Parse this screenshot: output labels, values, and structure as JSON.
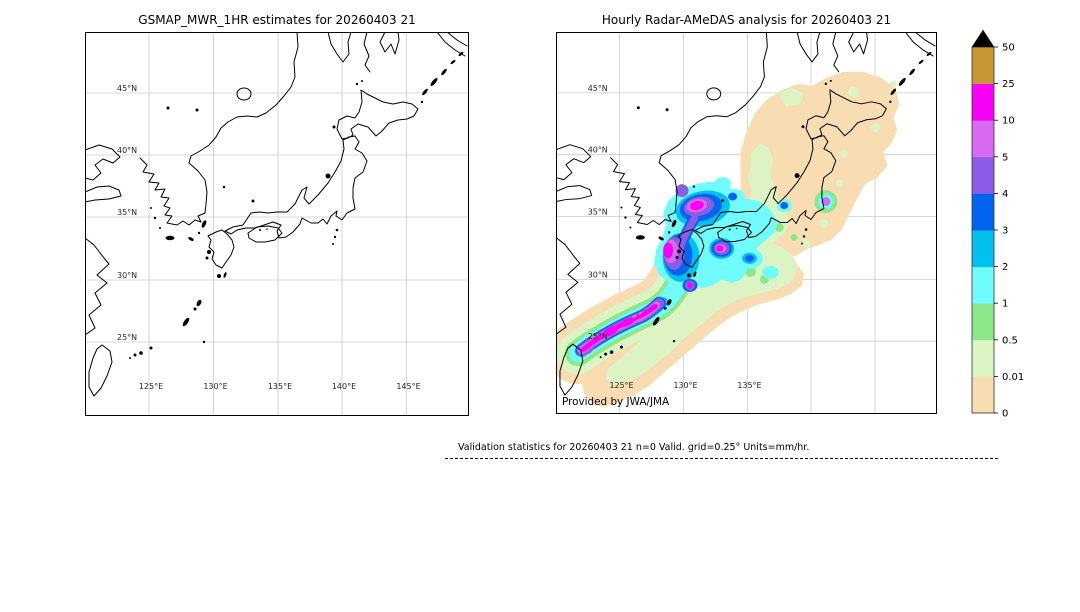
{
  "figure": {
    "background": "#ffffff"
  },
  "left_panel": {
    "title": "GSMAP_MWR_1HR estimates for 20260403 21",
    "lat_labels": [
      "45°N",
      "40°N",
      "35°N",
      "30°N",
      "25°N"
    ],
    "lon_labels": [
      "125°E",
      "130°E",
      "135°E",
      "140°E",
      "145°E"
    ]
  },
  "right_panel": {
    "title": "Hourly Radar-AMeDAS analysis for 20260403 21",
    "lat_labels": [
      "45°N",
      "40°N",
      "35°N",
      "30°N",
      "25°N"
    ],
    "lon_labels": [
      "125°E",
      "130°E",
      "135°E"
    ],
    "credit": "Provided by JWA/JMA"
  },
  "colorbar": {
    "levels": [
      "0",
      "0.01",
      "0.5",
      "1",
      "2",
      "3",
      "4",
      "5",
      "10",
      "25",
      "50"
    ],
    "colors": [
      "#f8dcb2",
      "#dcf4c4",
      "#8ae88a",
      "#70fcfc",
      "#00c0f0",
      "#0064f0",
      "#8c5ce6",
      "#d76af0",
      "#f800f8",
      "#c89632"
    ],
    "over_color": "#000000",
    "units": "mm/hr"
  },
  "footer": {
    "text": "Validation statistics for 20260403 21  n=0 Valid. grid=0.25° Units=mm/hr."
  },
  "chart_data": [
    {
      "type": "heatmap",
      "title": "GSMAP_MWR_1HR estimates for 20260403 21",
      "x_tick_labels": [
        "125°E",
        "130°E",
        "135°E",
        "140°E",
        "145°E"
      ],
      "y_tick_labels": [
        "45°N",
        "40°N",
        "35°N",
        "30°N",
        "25°N"
      ],
      "lon_range_deg_e": [
        120,
        150
      ],
      "lat_range_deg_n": [
        19.5,
        50
      ],
      "units": "mm/hr",
      "grid": true,
      "data_summary": "no precipitation estimates plotted (n=0); base map of Japan, Korea and east China only"
    },
    {
      "type": "heatmap",
      "title": "Hourly Radar-AMeDAS analysis for 20260403 21",
      "x_tick_labels": [
        "125°E",
        "130°E",
        "135°E"
      ],
      "y_tick_labels": [
        "45°N",
        "40°N",
        "35°N",
        "30°N",
        "25°N"
      ],
      "lon_range_deg_e": [
        120,
        150
      ],
      "lat_range_deg_n": [
        19.5,
        50
      ],
      "units": "mm/hr",
      "grid": true,
      "annotation": "Provided by JWA/JMA",
      "color_levels_mm_hr": [
        0,
        0.01,
        0.5,
        1,
        2,
        3,
        4,
        5,
        10,
        25,
        50
      ],
      "data_summary": "rain band running from northeast of Taiwan along the Okinawa islands to west of Kyushu and the Korea Strait with 10-25 mm/hr cores and small >25 mm/hr spots; 1-10 mm/hr around Kyushu, the Seto area and the Korea Strait; 0.01-1 mm/hr over western/central Honshu and Shikoku; trace (<0.01 band edge, 0-0.01 shading) over Hokkaido and northern Honshu"
    }
  ]
}
